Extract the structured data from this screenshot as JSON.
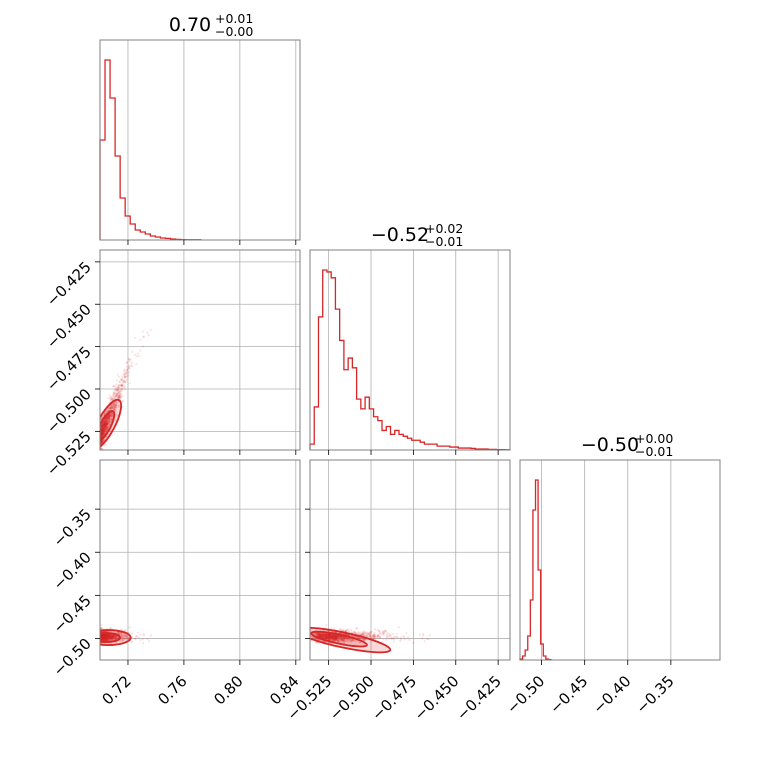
{
  "chart_data": {
    "type": "corner",
    "color": "#d62728",
    "grid": true,
    "parameters": [
      {
        "title_main": "0.70",
        "title_plus": "+0.01",
        "title_minus": "−0.00",
        "range": [
          0.7,
          0.843
        ],
        "ticks": [
          0.72,
          0.76,
          0.8,
          0.84
        ],
        "tick_labels": [
          "0.72",
          "0.76",
          "0.80",
          "0.84"
        ],
        "hist": {
          "start": 0.7,
          "bin_width": 0.0036,
          "counts": [
            50,
            90,
            71,
            42,
            21,
            12,
            8,
            5,
            4,
            3,
            2,
            1.5,
            1,
            0.8,
            0.5,
            0.3,
            0.2,
            0.1,
            0.1,
            0.1
          ]
        }
      },
      {
        "title_main": "−0.52",
        "title_plus": "+0.02",
        "title_minus": "−0.01",
        "range": [
          -0.536,
          -0.418
        ],
        "ticks": [
          -0.425,
          -0.45,
          -0.475,
          -0.5,
          -0.525
        ],
        "tick_labels": [
          "−0.425",
          "−0.450",
          "−0.475",
          "−0.500",
          "−0.525"
        ],
        "hist": {
          "start": -0.536,
          "bin_width": 0.0025,
          "counts": [
            3,
            22,
            68,
            92,
            91,
            88,
            72,
            56,
            41,
            47,
            42,
            26,
            21,
            27,
            21,
            17,
            15,
            10,
            12,
            8,
            10,
            8,
            7,
            6,
            5,
            5,
            4,
            3,
            3,
            3,
            2,
            2,
            2,
            1.5,
            1.5,
            1,
            1,
            1,
            0.8,
            0.5,
            0.5,
            0.5,
            0.3,
            0.3,
            0.2,
            0.2,
            0.1
          ]
        }
      },
      {
        "title_main": "−0.50",
        "title_plus": "+0.00",
        "title_minus": "−0.01",
        "range": [
          -0.525,
          -0.293
        ],
        "ticks": [
          -0.5,
          -0.45,
          -0.4,
          -0.35
        ],
        "tick_labels": [
          "−0.50",
          "−0.45",
          "−0.40",
          "−0.35"
        ],
        "hist": {
          "start": -0.525,
          "bin_width": 0.003,
          "counts": [
            0.5,
            2,
            5,
            12,
            30,
            75,
            90,
            45,
            8,
            2,
            0.5,
            0.2
          ]
        }
      }
    ]
  }
}
